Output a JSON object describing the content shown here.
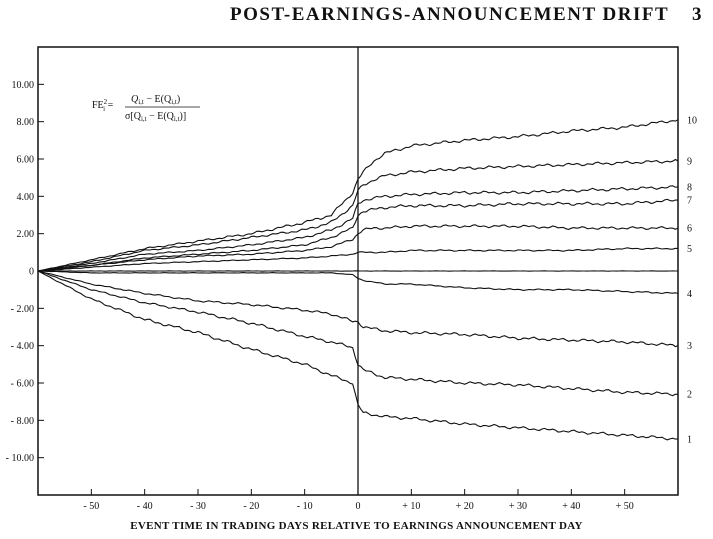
{
  "header": {
    "title": "POST-EARNINGS-ANNOUNCEMENT DRIFT",
    "page_number": "3"
  },
  "chart_data": {
    "type": "line",
    "title": "",
    "xlabel": "EVENT TIME IN TRADING DAYS RELATIVE TO EARNINGS ANNOUNCEMENT DAY",
    "ylabel": "",
    "xlim": [
      -60,
      60
    ],
    "ylim": [
      -12,
      12
    ],
    "x_ticks": [
      -50,
      -40,
      -30,
      -20,
      -10,
      0,
      10,
      20,
      30,
      40,
      50
    ],
    "x_tick_labels": [
      "- 50",
      "- 40",
      "- 30",
      "- 20",
      "- 10",
      "0",
      "+ 10",
      "+ 20",
      "+ 30",
      "+ 40",
      "+ 50"
    ],
    "y_ticks": [
      10,
      8,
      6,
      4,
      2,
      0,
      -2,
      -4,
      -6,
      -8,
      -10
    ],
    "y_tick_labels": [
      "10.00",
      "8.00",
      "6.00",
      "4.00",
      "2.00",
      "0",
      "- 2.00",
      "- 4.00",
      "- 6.00",
      "- 8.00",
      "- 10.00"
    ],
    "grid": false,
    "announcement_day_line": 0,
    "formula": {
      "lhs": "FE",
      "lhs_super": "2",
      "lhs_sub": "i",
      "numerator": "Q",
      "numerator_sub": "i,t",
      "numerator_rest": " − E(Q",
      "numerator_rest_sub": "i,t",
      "numerator_end": ")",
      "denominator": "σ[Q",
      "denominator_sub": "i,t",
      "denominator_rest": " − E(Q",
      "denominator_rest_sub": "i,t",
      "denominator_end": ")]"
    },
    "x": [
      -60,
      -50,
      -40,
      -30,
      -20,
      -10,
      -5,
      -1,
      0,
      1,
      3,
      5,
      10,
      20,
      30,
      40,
      50,
      60
    ],
    "series": [
      {
        "label": "10",
        "values": [
          0,
          0.6,
          1.2,
          1.6,
          2.0,
          2.6,
          3.0,
          4.2,
          4.9,
          5.3,
          5.9,
          6.3,
          6.7,
          7.0,
          7.2,
          7.5,
          7.7,
          8.1
        ]
      },
      {
        "label": "9",
        "values": [
          0,
          0.5,
          1.1,
          1.4,
          1.8,
          2.2,
          2.6,
          3.5,
          4.3,
          4.6,
          4.9,
          5.1,
          5.3,
          5.5,
          5.6,
          5.7,
          5.8,
          5.9
        ]
      },
      {
        "label": "8",
        "values": [
          0,
          0.4,
          0.9,
          1.1,
          1.4,
          1.8,
          2.2,
          2.8,
          3.6,
          3.8,
          3.9,
          4.0,
          4.1,
          4.2,
          4.2,
          4.3,
          4.4,
          4.5
        ]
      },
      {
        "label": "7",
        "values": [
          0,
          0.3,
          0.7,
          0.9,
          1.1,
          1.4,
          1.8,
          2.3,
          3.0,
          3.2,
          3.3,
          3.4,
          3.5,
          3.5,
          3.6,
          3.6,
          3.6,
          3.8
        ]
      },
      {
        "label": "6",
        "values": [
          0,
          0.3,
          0.6,
          0.8,
          0.9,
          1.1,
          1.3,
          1.7,
          2.0,
          2.2,
          2.3,
          2.3,
          2.4,
          2.4,
          2.4,
          2.3,
          2.3,
          2.3
        ]
      },
      {
        "label": "5",
        "values": [
          0,
          0.2,
          0.4,
          0.5,
          0.6,
          0.7,
          0.8,
          0.9,
          1.0,
          1.0,
          1.0,
          1.0,
          1.1,
          1.1,
          1.1,
          1.1,
          1.2,
          1.2
        ]
      },
      {
        "label": "",
        "values": [
          0,
          0.0,
          0.0,
          0.0,
          0.0,
          0.0,
          0.0,
          0.0,
          0.0,
          0.0,
          0.0,
          0.0,
          0.0,
          0.0,
          0.0,
          0.0,
          0.0,
          0.0
        ]
      },
      {
        "label": "4",
        "values": [
          0,
          -0.1,
          -0.1,
          -0.1,
          -0.1,
          -0.1,
          -0.1,
          -0.2,
          -0.4,
          -0.5,
          -0.6,
          -0.7,
          -0.7,
          -0.9,
          -1.0,
          -1.0,
          -1.1,
          -1.2
        ]
      },
      {
        "label": "3",
        "values": [
          0,
          -0.7,
          -1.2,
          -1.6,
          -1.8,
          -2.1,
          -2.3,
          -2.7,
          -2.7,
          -3.0,
          -3.1,
          -3.2,
          -3.3,
          -3.4,
          -3.6,
          -3.7,
          -3.8,
          -4.0
        ]
      },
      {
        "label": "2",
        "values": [
          0,
          -1.0,
          -1.7,
          -2.2,
          -2.8,
          -3.5,
          -3.8,
          -4.1,
          -5.0,
          -5.3,
          -5.5,
          -5.7,
          -5.8,
          -6.0,
          -6.1,
          -6.3,
          -6.5,
          -6.6
        ]
      },
      {
        "label": "1",
        "values": [
          0,
          -1.5,
          -2.6,
          -3.3,
          -4.2,
          -5.0,
          -5.6,
          -6.0,
          -7.2,
          -7.6,
          -7.7,
          -7.8,
          -7.9,
          -8.2,
          -8.4,
          -8.6,
          -8.8,
          -9.0
        ]
      }
    ]
  }
}
